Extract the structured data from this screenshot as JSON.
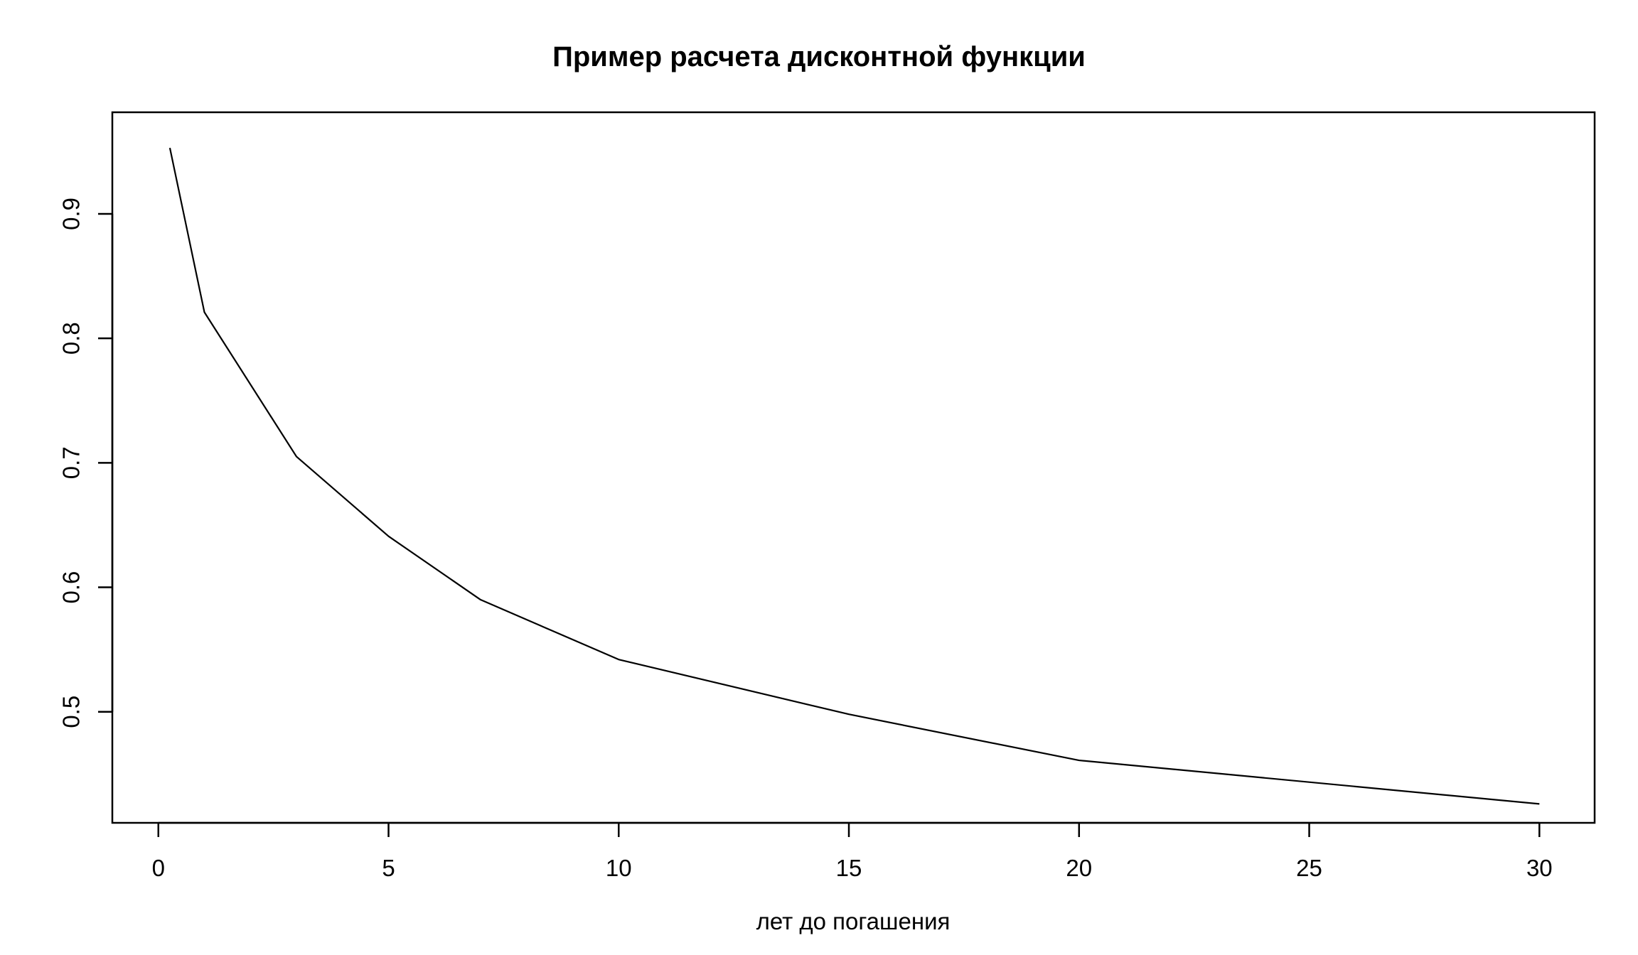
{
  "chart_data": {
    "type": "line",
    "title": "Пример расчета дисконтной функции",
    "xlabel": "лет до погашения",
    "ylabel": "",
    "xlim": [
      -1.0,
      31.2
    ],
    "ylim": [
      0.4108,
      0.9816
    ],
    "x_ticks": [
      0,
      5,
      10,
      15,
      20,
      25,
      30
    ],
    "y_ticks": [
      0.5,
      0.6,
      0.7,
      0.8,
      0.9
    ],
    "x_tick_labels": [
      "0",
      "5",
      "10",
      "15",
      "20",
      "25",
      "30"
    ],
    "y_tick_labels": [
      "0.5",
      "0.6",
      "0.7",
      "0.8",
      "0.9"
    ],
    "grid": false,
    "legend": "none",
    "line_color": "#000000",
    "series": [
      {
        "x": [
          0.25,
          1,
          3,
          5,
          7,
          10,
          15,
          20,
          30
        ],
        "y": [
          0.953,
          0.821,
          0.705,
          0.641,
          0.59,
          0.542,
          0.498,
          0.461,
          0.426
        ]
      }
    ]
  }
}
